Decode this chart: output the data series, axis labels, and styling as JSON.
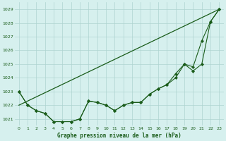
{
  "title": "Graphe pression niveau de la mer (hPa)",
  "background_color": "#d6f0ee",
  "grid_color": "#aed4d0",
  "line_color": "#1a5c1a",
  "xlim": [
    -0.5,
    23.5
  ],
  "ylim": [
    1020.5,
    1029.5
  ],
  "yticks": [
    1021,
    1022,
    1023,
    1024,
    1025,
    1026,
    1027,
    1028,
    1029
  ],
  "xticks": [
    0,
    1,
    2,
    3,
    4,
    5,
    6,
    7,
    8,
    9,
    10,
    11,
    12,
    13,
    14,
    15,
    16,
    17,
    18,
    19,
    20,
    21,
    22,
    23
  ],
  "series": [
    {
      "x": [
        0,
        1,
        2,
        3,
        4,
        5,
        6,
        7,
        8,
        9,
        10,
        11,
        12,
        13,
        14,
        15,
        16,
        17,
        18,
        19,
        20,
        21,
        22,
        23
      ],
      "y": [
        1023.0,
        1022.0,
        1021.6,
        1021.4,
        1020.8,
        1020.8,
        1020.8,
        1021.0,
        1022.3,
        1022.2,
        1022.0,
        1021.6,
        1022.0,
        1022.2,
        1022.2,
        1022.8,
        1023.2,
        1023.5,
        1024.0,
        1025.0,
        1024.5,
        1025.0,
        1028.1,
        1029.0
      ],
      "marker": "D",
      "markersize": 2.0,
      "linewidth": 0.8
    },
    {
      "x": [
        0,
        1,
        2,
        3,
        4,
        5,
        6,
        7,
        8,
        9,
        10,
        11,
        12,
        13,
        14,
        15,
        16,
        17,
        18,
        19,
        20,
        21,
        22,
        23
      ],
      "y": [
        1023.0,
        1022.0,
        1021.6,
        1021.4,
        1020.8,
        1020.8,
        1020.8,
        1021.0,
        1022.3,
        1022.2,
        1022.0,
        1021.6,
        1022.0,
        1022.2,
        1022.2,
        1022.8,
        1023.2,
        1023.5,
        1024.3,
        1025.0,
        1024.8,
        1026.7,
        1028.1,
        1029.0
      ],
      "marker": "P",
      "markersize": 2.5,
      "linewidth": 0.8
    },
    {
      "x": [
        0,
        23
      ],
      "y": [
        1022.0,
        1029.0
      ],
      "marker": null,
      "markersize": 0,
      "linewidth": 0.9
    }
  ]
}
